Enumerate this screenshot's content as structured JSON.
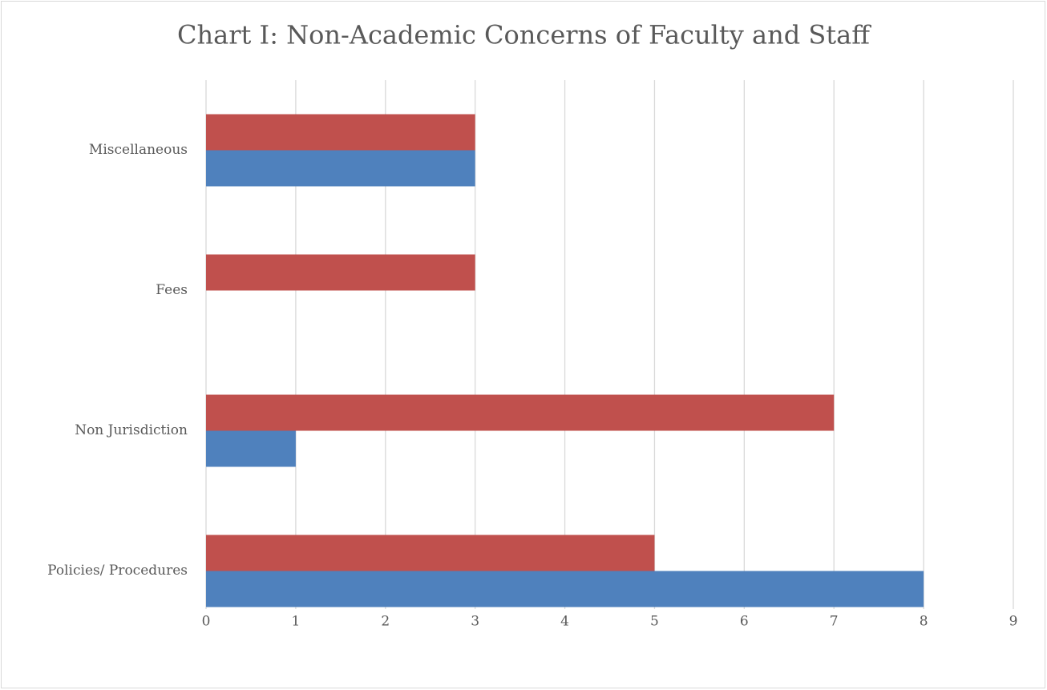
{
  "chart_data": {
    "type": "barh",
    "title": "Chart I: Non-Academic Concerns of Faculty and Staff",
    "categories": [
      "Policies/ Procedures",
      "Non Jurisdiction",
      "Fees",
      "Miscellaneous"
    ],
    "series": [
      {
        "color": "#4f81bd",
        "values": [
          8,
          1,
          0,
          3
        ]
      },
      {
        "color": "#c0504d",
        "values": [
          5,
          7,
          3,
          3
        ]
      }
    ],
    "xlim": [
      0,
      9
    ],
    "xticks": [
      0,
      1,
      2,
      3,
      4,
      5,
      6,
      7,
      8,
      9
    ],
    "grid": true
  }
}
